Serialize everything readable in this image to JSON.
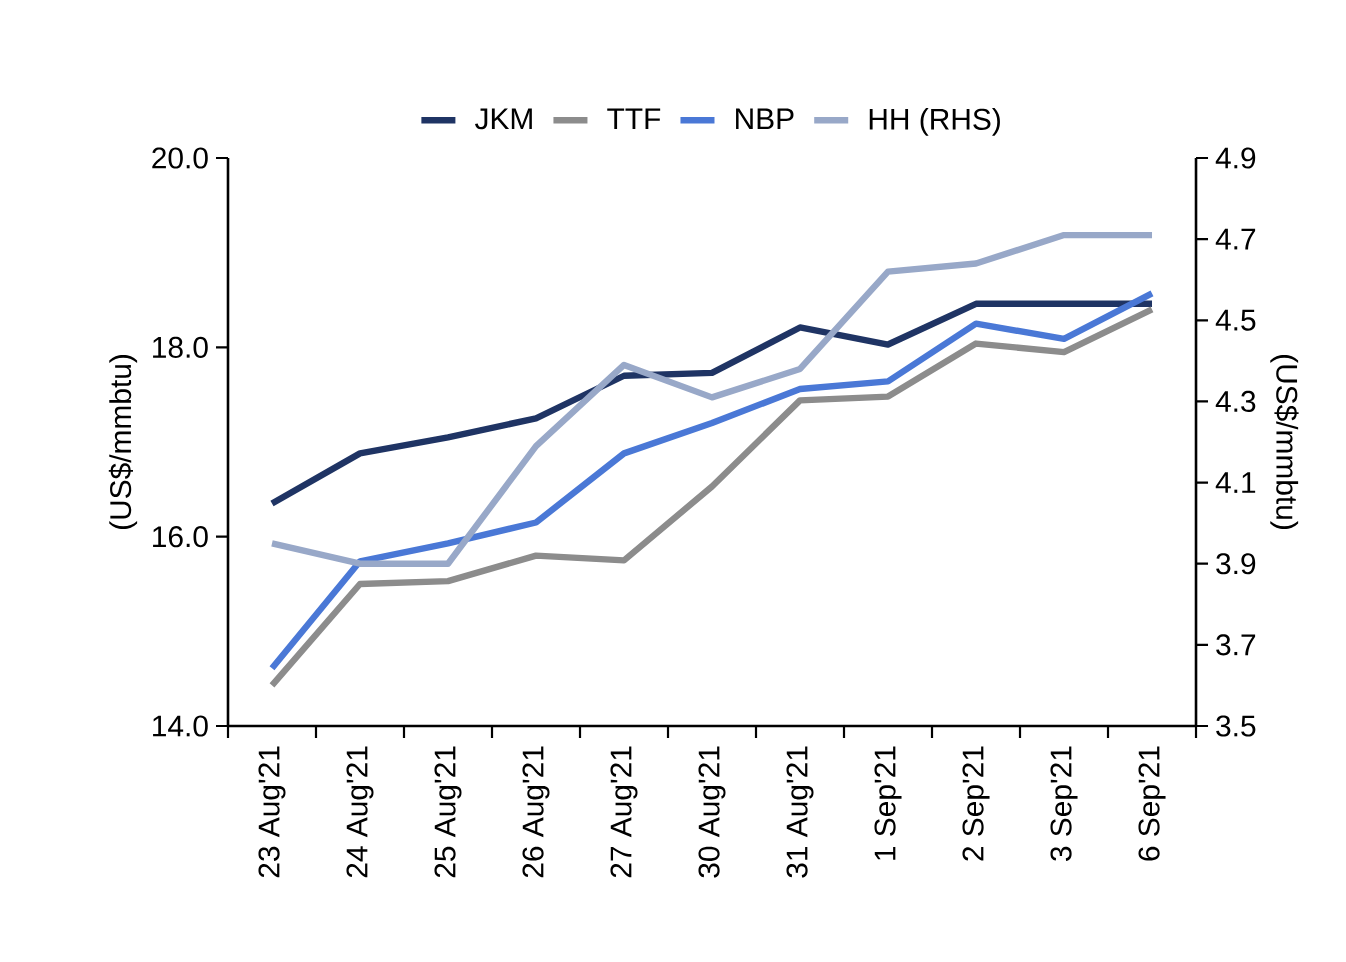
{
  "chart_data": {
    "type": "line",
    "ylabel": "(US$/mmbtu)",
    "y2label": "(US$/mmbtu)",
    "categories": [
      "23 Aug'21",
      "24 Aug'21",
      "25 Aug'21",
      "26 Aug'21",
      "27 Aug'21",
      "30 Aug'21",
      "31 Aug'21",
      "1 Sep'21",
      "2 Sep'21",
      "3 Sep'21",
      "6 Sep'21"
    ],
    "series": [
      {
        "name": "JKM",
        "color": "#1f3464",
        "values": [
          16.35,
          16.88,
          17.05,
          17.25,
          17.7,
          17.73,
          18.21,
          18.03,
          18.46,
          18.46,
          18.46
        ]
      },
      {
        "name": "TTF",
        "color": "#8c8c8c",
        "values": [
          14.43,
          15.5,
          15.53,
          15.8,
          15.75,
          16.53,
          17.44,
          17.48,
          18.04,
          17.95,
          18.4
        ]
      },
      {
        "name": "NBP",
        "color": "#4a78d6",
        "values": [
          14.61,
          15.74,
          15.93,
          16.15,
          16.88,
          17.2,
          17.56,
          17.64,
          18.25,
          18.09,
          18.57
        ]
      },
      {
        "name": "HH (RHS)",
        "color": "#98a8c8",
        "axis": "y2",
        "values": [
          3.95,
          3.9,
          3.9,
          4.19,
          4.39,
          4.31,
          4.38,
          4.62,
          4.64,
          4.71,
          4.71
        ]
      }
    ],
    "ylim": [
      14,
      20
    ],
    "yticks": [
      {
        "value": 14,
        "label": "14.0"
      },
      {
        "value": 16,
        "label": "16.0"
      },
      {
        "value": 18,
        "label": "18.0"
      },
      {
        "value": 20,
        "label": "20.0"
      }
    ],
    "y2lim": [
      3.5,
      4.9
    ],
    "y2ticks": [
      3.5,
      3.7,
      3.9,
      4.1,
      4.3,
      4.5,
      4.7,
      4.9
    ],
    "legend": "top",
    "grid": false,
    "marker": "none",
    "line_style": "solid"
  }
}
